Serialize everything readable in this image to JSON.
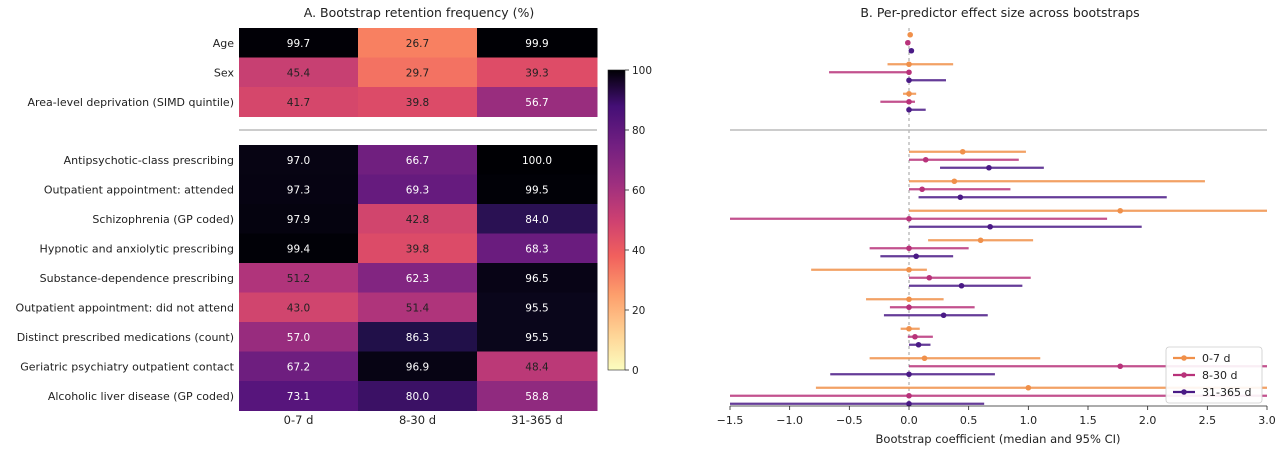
{
  "chart_data": [
    {
      "type": "heatmap",
      "title": "A. Bootstrap retention frequency (%)",
      "columns": [
        "0-7 d",
        "8-30 d",
        "31-365 d"
      ],
      "row_groups": [
        [
          "Age",
          "Sex",
          "Area-level deprivation (SIMD quintile)"
        ],
        [
          "Antipsychotic-class prescribing",
          "Outpatient appointment: attended",
          "Schizophrenia (GP coded)",
          "Hypnotic and anxiolytic prescribing",
          "Substance-dependence prescribing",
          "Outpatient appointment: did not attend",
          "Distinct prescribed medications (count)",
          "Geriatric psychiatry outpatient contact",
          "Alcoholic liver disease (GP coded)"
        ]
      ],
      "values": [
        [
          [
            99.7,
            26.7,
            99.9
          ],
          [
            45.4,
            29.7,
            39.3
          ],
          [
            41.7,
            39.8,
            56.7
          ]
        ],
        [
          [
            97.0,
            66.7,
            100.0
          ],
          [
            97.3,
            69.3,
            99.5
          ],
          [
            97.9,
            42.8,
            84.0
          ],
          [
            99.4,
            39.8,
            68.3
          ],
          [
            51.2,
            62.3,
            96.5
          ],
          [
            43.0,
            51.4,
            95.5
          ],
          [
            57.0,
            86.3,
            95.5
          ],
          [
            67.2,
            96.9,
            48.4
          ],
          [
            73.1,
            80.0,
            58.8
          ]
        ]
      ],
      "value_labels": [
        [
          [
            "99.7",
            "26.7",
            "99.9"
          ],
          [
            "45.4",
            "29.7",
            "39.3"
          ],
          [
            "41.7",
            "39.8",
            "56.7"
          ]
        ],
        [
          [
            "97.0",
            "66.7",
            "100.0"
          ],
          [
            "97.3",
            "69.3",
            "99.5"
          ],
          [
            "97.9",
            "42.8",
            "84.0"
          ],
          [
            "99.4",
            "39.8",
            "68.3"
          ],
          [
            "51.2",
            "62.3",
            "96.5"
          ],
          [
            "43.0",
            "51.4",
            "95.5"
          ],
          [
            "57.0",
            "86.3",
            "95.5"
          ],
          [
            "67.2",
            "96.9",
            "48.4"
          ],
          [
            "73.1",
            "80.0",
            "58.8"
          ]
        ]
      ],
      "colorbar": {
        "range": [
          0,
          100
        ],
        "ticks": [
          "0",
          "20",
          "40",
          "60",
          "80",
          "100"
        ],
        "colormap": "magma"
      }
    },
    {
      "type": "scatter",
      "title": "B. Per-predictor effect size across bootstraps",
      "xlabel": "Bootstrap coefficient (median and 95% CI)",
      "xlim": [
        -1.5,
        3.0
      ],
      "xticks": [
        "−1.5",
        "−1.0",
        "−0.5",
        "0.0",
        "0.5",
        "1.0",
        "1.5",
        "2.0",
        "2.5",
        "3.0"
      ],
      "legend": {
        "position": "lower-right",
        "entries": [
          "0-7 d",
          "8-30 d",
          "31-365 d"
        ]
      },
      "series": [
        {
          "name": "0-7 d",
          "color": "#f0904a",
          "median": [
            0.01,
            0.0,
            0.0,
            0.45,
            0.38,
            1.77,
            0.6,
            0.0,
            0.0,
            0.0,
            0.13,
            1.0
          ],
          "ci_low": [
            0.0,
            -0.18,
            -0.05,
            0.0,
            0.0,
            0.0,
            0.16,
            -0.82,
            -0.36,
            -0.07,
            -0.33,
            -0.78
          ],
          "ci_high": [
            0.02,
            0.37,
            0.06,
            0.98,
            2.48,
            3.0,
            1.04,
            0.15,
            0.29,
            0.09,
            1.1,
            3.0
          ]
        },
        {
          "name": "8-30 d",
          "color": "#b8327a",
          "median": [
            -0.01,
            0.0,
            0.0,
            0.14,
            0.11,
            0.0,
            0.0,
            0.17,
            0.0,
            0.05,
            1.77,
            0.0
          ],
          "ci_low": [
            -0.02,
            -0.67,
            -0.24,
            0.0,
            0.0,
            -1.5,
            -0.33,
            0.0,
            -0.16,
            -0.01,
            0.0,
            -1.5
          ],
          "ci_high": [
            0.0,
            0.0,
            0.05,
            0.92,
            0.85,
            1.66,
            0.5,
            1.02,
            0.55,
            0.2,
            3.0,
            3.0
          ]
        },
        {
          "name": "31-365 d",
          "color": "#4a1a86",
          "median": [
            0.02,
            0.0,
            0.0,
            0.67,
            0.43,
            0.68,
            0.06,
            0.44,
            0.29,
            0.08,
            0.0,
            0.0
          ],
          "ci_low": [
            0.01,
            0.0,
            0.0,
            0.26,
            0.08,
            0.0,
            -0.24,
            0.0,
            -0.21,
            0.0,
            -0.66,
            -1.5
          ],
          "ci_high": [
            0.03,
            0.31,
            0.14,
            1.13,
            2.16,
            1.95,
            0.37,
            0.95,
            0.66,
            0.18,
            0.72,
            0.63
          ]
        }
      ]
    }
  ]
}
